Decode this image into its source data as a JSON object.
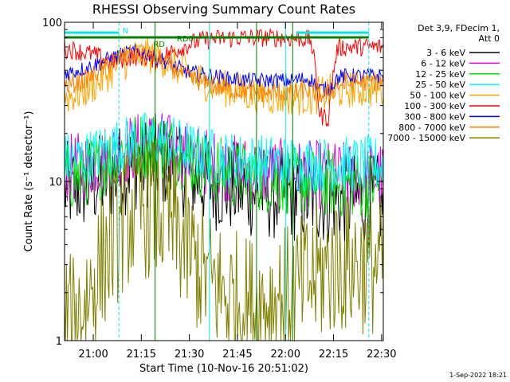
{
  "chart_data": {
    "type": "line",
    "title": "RHESSI Observing Summary Count Rates",
    "xlabel": "Start Time (10-Nov-16 20:51:02)",
    "ylabel": "Count Rate (s⁻¹ detector⁻¹)",
    "yscale": "log",
    "ylim": [
      1,
      100
    ],
    "xlim_minutes": [
      20.0,
      28.8
    ],
    "x_ticks": [
      "21:00",
      "21:15",
      "21:30",
      "21:45",
      "22:00",
      "22:15",
      "22:30"
    ],
    "y_ticks": [
      "1",
      "10",
      "100"
    ],
    "legend_header": [
      "Det 3,9, FDecim 1,",
      "Att 0"
    ],
    "legend_position": "right",
    "annotations": [
      {
        "text": "N",
        "color": "#00e5e5"
      },
      {
        "text": "RD",
        "color": "#008000"
      },
      {
        "text": "RD0",
        "color": "#008000"
      }
    ],
    "footer_stamp": "1-Sep-2022 18:21",
    "series": [
      {
        "name": "3 - 6 keV",
        "color": "#000000",
        "values": [
          9.0,
          9.2,
          9.5,
          9.8,
          10.2,
          10.8,
          11.6,
          12.4,
          13.0,
          13.4,
          13.5,
          13.2,
          12.6,
          11.8,
          11.0,
          10.4,
          9.9,
          9.5,
          9.2,
          9.0,
          8.8,
          8.6,
          8.5,
          8.4,
          8.3,
          8.2,
          8.1,
          8.0,
          7.9,
          7.8,
          7.8,
          7.7,
          7.6,
          7.6,
          7.5,
          7.5
        ]
      },
      {
        "name": "6 - 12 keV",
        "color": "#e000e0",
        "values": [
          12.0,
          12.2,
          12.5,
          13.0,
          13.6,
          14.4,
          15.2,
          16.0,
          16.6,
          17.0,
          17.0,
          16.6,
          15.9,
          15.0,
          14.2,
          13.6,
          13.0,
          12.6,
          12.2,
          12.0,
          11.8,
          11.6,
          11.5,
          11.4,
          11.3,
          11.2,
          11.1,
          11.0,
          11.0,
          10.9,
          10.9,
          10.8,
          10.8,
          10.8,
          10.8,
          10.8
        ]
      },
      {
        "name": "12 - 25 keV",
        "color": "#00e000",
        "values": [
          10.5,
          10.8,
          11.2,
          11.8,
          12.6,
          13.6,
          14.8,
          15.8,
          16.6,
          17.0,
          17.0,
          16.4,
          15.6,
          14.6,
          13.6,
          12.8,
          12.2,
          11.7,
          11.3,
          11.0,
          10.8,
          10.6,
          10.4,
          10.3,
          10.2,
          10.1,
          10.0,
          9.9,
          9.8,
          9.8,
          9.7,
          9.7,
          9.6,
          9.6,
          9.6,
          9.6
        ]
      },
      {
        "name": "25 - 50 keV",
        "color": "#00ffff",
        "values": [
          13.5,
          13.7,
          14.0,
          14.5,
          15.2,
          16.0,
          16.8,
          17.5,
          18.0,
          18.3,
          18.3,
          17.9,
          17.2,
          16.4,
          15.6,
          15.0,
          14.5,
          14.1,
          13.8,
          13.6,
          13.4,
          13.3,
          13.2,
          13.1,
          13.0,
          13.0,
          12.9,
          12.9,
          12.8,
          12.8,
          12.8,
          12.8,
          12.8,
          12.8,
          12.8,
          12.8
        ]
      },
      {
        "name": "50 - 100 keV",
        "color": "#ffa500",
        "values": [
          34,
          35,
          37,
          40,
          44,
          49,
          54,
          58,
          61,
          62,
          61,
          58,
          54,
          50,
          46,
          43,
          41,
          39,
          38,
          37,
          36,
          35,
          35,
          34,
          34,
          34,
          34,
          34,
          35,
          36,
          37,
          38,
          38,
          38,
          38,
          38
        ]
      },
      {
        "name": "100 - 300 keV",
        "color": "#ff0000",
        "values": [
          68,
          67,
          65,
          63,
          60,
          56,
          58,
          60,
          61,
          60,
          58,
          62,
          66,
          70,
          74,
          77,
          78,
          79,
          79,
          80,
          80,
          80,
          80,
          80,
          80,
          79,
          79,
          78,
          26,
          25,
          69,
          70,
          70,
          70,
          70,
          70
        ]
      },
      {
        "name": "300 - 800 keV",
        "color": "#0000ff",
        "values": [
          48,
          49,
          51,
          53,
          56,
          59,
          62,
          64,
          65,
          64,
          61,
          57,
          53,
          50,
          48,
          47,
          46,
          45,
          44,
          44,
          43,
          43,
          43,
          43,
          43,
          43,
          44,
          44,
          38,
          38,
          45,
          46,
          46,
          46,
          46,
          46
        ]
      },
      {
        "name": "800 - 7000 keV",
        "color": "#ff8000",
        "values": [
          40,
          41,
          43,
          46,
          50,
          55,
          60,
          63,
          64,
          63,
          60,
          56,
          51,
          47,
          44,
          42,
          40,
          39,
          38,
          37,
          37,
          36,
          36,
          36,
          36,
          36,
          37,
          37,
          35,
          35,
          40,
          41,
          42,
          42,
          42,
          42
        ]
      },
      {
        "name": "7000 - 15000 keV",
        "color": "#808000",
        "values": [
          1.2,
          1.3,
          1.6,
          2.2,
          3.0,
          4.0,
          5.0,
          6.0,
          6.5,
          6.8,
          6.6,
          6.0,
          5.2,
          4.2,
          3.4,
          2.8,
          2.4,
          2.1,
          1.9,
          1.8,
          1.7,
          1.7,
          1.7,
          1.8,
          1.9,
          2.0,
          2.2,
          2.4,
          2.6,
          2.8,
          3.0,
          3.0,
          3.0,
          3.0,
          3.0,
          3.0
        ]
      }
    ]
  }
}
